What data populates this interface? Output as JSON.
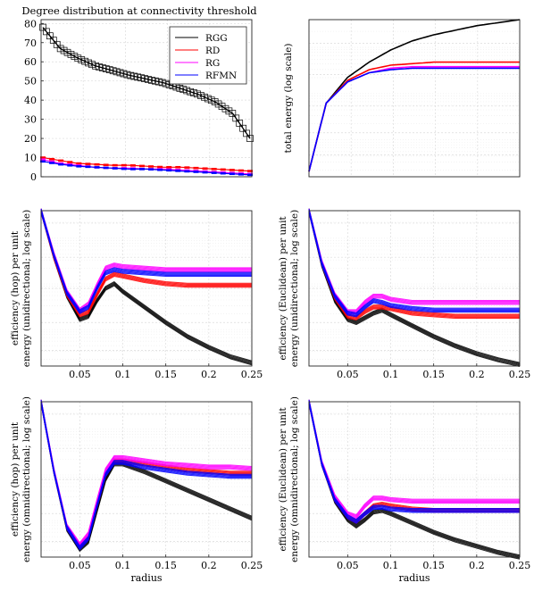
{
  "chart_data": [
    {
      "type": "line",
      "title": "Degree distribution at connectivity threshold",
      "xlabel": "",
      "ylabel": "",
      "ylim": [
        0,
        82
      ],
      "yticks": [
        "0",
        "10",
        "20",
        "30",
        "40",
        "50",
        "60",
        "70",
        "80"
      ],
      "grid": true,
      "legend": "top-right",
      "series": [
        {
          "name": "RGG",
          "color": "#000000",
          "values": [
            78,
            67,
            62,
            58,
            55.5,
            53,
            51,
            49,
            46,
            43,
            39,
            33,
            20
          ]
        },
        {
          "name": "RD",
          "color": "#ff0000",
          "values": [
            10,
            8.5,
            7,
            6.5,
            6,
            6,
            5.5,
            5,
            5,
            4.5,
            4,
            3.5,
            3
          ]
        },
        {
          "name": "RG",
          "color": "#ff00ff",
          "values": [
            9,
            7,
            6,
            5,
            4.5,
            4.5,
            4,
            4,
            3.5,
            3,
            2.5,
            2,
            1.5
          ]
        },
        {
          "name": "RFMN",
          "color": "#0000ff",
          "values": [
            8,
            6.5,
            5.5,
            5,
            4.5,
            4,
            4,
            3.5,
            3,
            2.5,
            2,
            1.5,
            1
          ]
        }
      ]
    },
    {
      "type": "line",
      "title": "",
      "xlabel": "",
      "ylabel": "total energy (log scale)",
      "log_y": true,
      "grid": true,
      "x": [
        0.005,
        0.025,
        0.05,
        0.075,
        0.1,
        0.125,
        0.15,
        0.175,
        0.2,
        0.225,
        0.25
      ],
      "series": [
        {
          "name": "RGG",
          "color": "#000000",
          "values": [
            0.0,
            0.45,
            0.62,
            0.72,
            0.8,
            0.86,
            0.9,
            0.93,
            0.96,
            0.98,
            1.0
          ]
        },
        {
          "name": "RD",
          "color": "#ff0000",
          "values": [
            0.0,
            0.45,
            0.6,
            0.67,
            0.7,
            0.71,
            0.72,
            0.72,
            0.72,
            0.72,
            0.72
          ]
        },
        {
          "name": "RG",
          "color": "#ff00ff",
          "values": [
            0.0,
            0.45,
            0.59,
            0.65,
            0.68,
            0.69,
            0.69,
            0.69,
            0.69,
            0.69,
            0.69
          ]
        },
        {
          "name": "RFMN",
          "color": "#0000ff",
          "values": [
            0.0,
            0.45,
            0.59,
            0.65,
            0.67,
            0.68,
            0.68,
            0.68,
            0.68,
            0.68,
            0.68
          ]
        }
      ]
    },
    {
      "type": "line",
      "title": "",
      "xlabel": "",
      "ylabel": [
        "efficiency (hop) per unit",
        "energy (unidirectional; log scale)"
      ],
      "log_y": true,
      "grid": true,
      "xlim": [
        0.005,
        0.25
      ],
      "xticks": [
        "0.05",
        "0.1",
        "0.15",
        "0.2",
        "0.25"
      ],
      "x": [
        0.005,
        0.02,
        0.035,
        0.05,
        0.06,
        0.07,
        0.08,
        0.09,
        0.1,
        0.125,
        0.15,
        0.175,
        0.2,
        0.225,
        0.25
      ],
      "series": [
        {
          "name": "RGG",
          "color": "#000000",
          "values": [
            1.0,
            0.7,
            0.45,
            0.3,
            0.32,
            0.42,
            0.5,
            0.53,
            0.48,
            0.38,
            0.28,
            0.19,
            0.12,
            0.06,
            0.02
          ]
        },
        {
          "name": "RD",
          "color": "#ff0000",
          "values": [
            1.0,
            0.7,
            0.46,
            0.33,
            0.35,
            0.46,
            0.56,
            0.59,
            0.58,
            0.55,
            0.53,
            0.52,
            0.52,
            0.52,
            0.52
          ]
        },
        {
          "name": "RG",
          "color": "#ff00ff",
          "values": [
            1.0,
            0.72,
            0.48,
            0.36,
            0.4,
            0.52,
            0.63,
            0.65,
            0.64,
            0.63,
            0.62,
            0.62,
            0.62,
            0.62,
            0.62
          ]
        },
        {
          "name": "RFMN",
          "color": "#0000ff",
          "values": [
            1.0,
            0.71,
            0.47,
            0.35,
            0.38,
            0.5,
            0.6,
            0.62,
            0.61,
            0.6,
            0.59,
            0.59,
            0.59,
            0.59,
            0.59
          ]
        }
      ]
    },
    {
      "type": "line",
      "title": "",
      "xlabel": "",
      "ylabel": [
        "efficiency (Euclidean) per unit",
        "energy (unidirectional; log scale)"
      ],
      "log_y": true,
      "grid": true,
      "xlim": [
        0.005,
        0.25
      ],
      "xticks": [
        "0.05",
        "0.1",
        "0.15",
        "0.2",
        "0.25"
      ],
      "x": [
        0.005,
        0.02,
        0.035,
        0.05,
        0.06,
        0.07,
        0.08,
        0.09,
        0.1,
        0.125,
        0.15,
        0.175,
        0.2,
        0.225,
        0.25
      ],
      "series": [
        {
          "name": "RGG",
          "color": "#000000",
          "values": [
            1.0,
            0.65,
            0.42,
            0.3,
            0.28,
            0.31,
            0.34,
            0.36,
            0.33,
            0.26,
            0.19,
            0.13,
            0.08,
            0.04,
            0.01
          ]
        },
        {
          "name": "RD",
          "color": "#ff0000",
          "values": [
            1.0,
            0.66,
            0.44,
            0.32,
            0.31,
            0.35,
            0.38,
            0.38,
            0.37,
            0.34,
            0.33,
            0.32,
            0.32,
            0.32,
            0.32
          ]
        },
        {
          "name": "RG",
          "color": "#ff00ff",
          "values": [
            1.0,
            0.67,
            0.46,
            0.35,
            0.35,
            0.41,
            0.45,
            0.45,
            0.43,
            0.41,
            0.41,
            0.41,
            0.41,
            0.41,
            0.41
          ]
        },
        {
          "name": "RFMN",
          "color": "#0000ff",
          "values": [
            1.0,
            0.66,
            0.45,
            0.34,
            0.33,
            0.38,
            0.42,
            0.41,
            0.39,
            0.37,
            0.36,
            0.36,
            0.36,
            0.36,
            0.36
          ]
        }
      ]
    },
    {
      "type": "line",
      "title": "",
      "xlabel": "radius",
      "ylabel": [
        "efficiency (hop) per unit",
        "energy (omnidirectional; log scale)"
      ],
      "log_y": true,
      "grid": true,
      "xlim": [
        0.005,
        0.25
      ],
      "xticks": [
        "0.05",
        "0.1",
        "0.15",
        "0.2",
        "0.25"
      ],
      "x": [
        0.005,
        0.02,
        0.035,
        0.05,
        0.06,
        0.07,
        0.08,
        0.09,
        0.1,
        0.125,
        0.15,
        0.175,
        0.2,
        0.225,
        0.25
      ],
      "series": [
        {
          "name": "RGG",
          "color": "#000000",
          "values": [
            1.0,
            0.55,
            0.18,
            0.05,
            0.1,
            0.3,
            0.5,
            0.6,
            0.6,
            0.55,
            0.49,
            0.43,
            0.37,
            0.31,
            0.25
          ]
        },
        {
          "name": "RD",
          "color": "#ff0000",
          "values": [
            1.0,
            0.55,
            0.19,
            0.07,
            0.13,
            0.33,
            0.53,
            0.62,
            0.62,
            0.6,
            0.58,
            0.56,
            0.55,
            0.54,
            0.54
          ]
        },
        {
          "name": "RG",
          "color": "#ff00ff",
          "values": [
            1.0,
            0.56,
            0.2,
            0.08,
            0.15,
            0.36,
            0.56,
            0.64,
            0.64,
            0.62,
            0.6,
            0.59,
            0.58,
            0.58,
            0.57
          ]
        },
        {
          "name": "RFMN",
          "color": "#0000ff",
          "values": [
            1.0,
            0.55,
            0.19,
            0.06,
            0.12,
            0.33,
            0.53,
            0.61,
            0.61,
            0.58,
            0.56,
            0.54,
            0.53,
            0.52,
            0.52
          ]
        }
      ]
    },
    {
      "type": "line",
      "title": "",
      "xlabel": "radius",
      "ylabel": [
        "efficiency (Euclidean) per unit",
        "energy (omnidirectional; log scale)"
      ],
      "log_y": true,
      "grid": true,
      "xlim": [
        0.005,
        0.25
      ],
      "xticks": [
        "0.05",
        "0.1",
        "0.15",
        "0.2",
        "0.25"
      ],
      "x": [
        0.005,
        0.02,
        0.035,
        0.05,
        0.06,
        0.07,
        0.08,
        0.09,
        0.1,
        0.125,
        0.15,
        0.175,
        0.2,
        0.225,
        0.25
      ],
      "series": [
        {
          "name": "RGG",
          "color": "#000000",
          "values": [
            1.0,
            0.6,
            0.36,
            0.24,
            0.2,
            0.24,
            0.29,
            0.3,
            0.28,
            0.22,
            0.16,
            0.11,
            0.07,
            0.03,
            0.0
          ]
        },
        {
          "name": "RD",
          "color": "#ff0000",
          "values": [
            1.0,
            0.6,
            0.37,
            0.26,
            0.23,
            0.28,
            0.33,
            0.34,
            0.33,
            0.31,
            0.3,
            0.3,
            0.3,
            0.3,
            0.3
          ]
        },
        {
          "name": "RG",
          "color": "#ff00ff",
          "values": [
            1.0,
            0.61,
            0.39,
            0.28,
            0.26,
            0.33,
            0.38,
            0.38,
            0.37,
            0.36,
            0.36,
            0.36,
            0.36,
            0.36,
            0.36
          ]
        },
        {
          "name": "RFMN",
          "color": "#0000ff",
          "values": [
            1.0,
            0.6,
            0.37,
            0.26,
            0.23,
            0.28,
            0.32,
            0.32,
            0.31,
            0.3,
            0.3,
            0.3,
            0.3,
            0.3,
            0.3
          ]
        }
      ]
    }
  ]
}
